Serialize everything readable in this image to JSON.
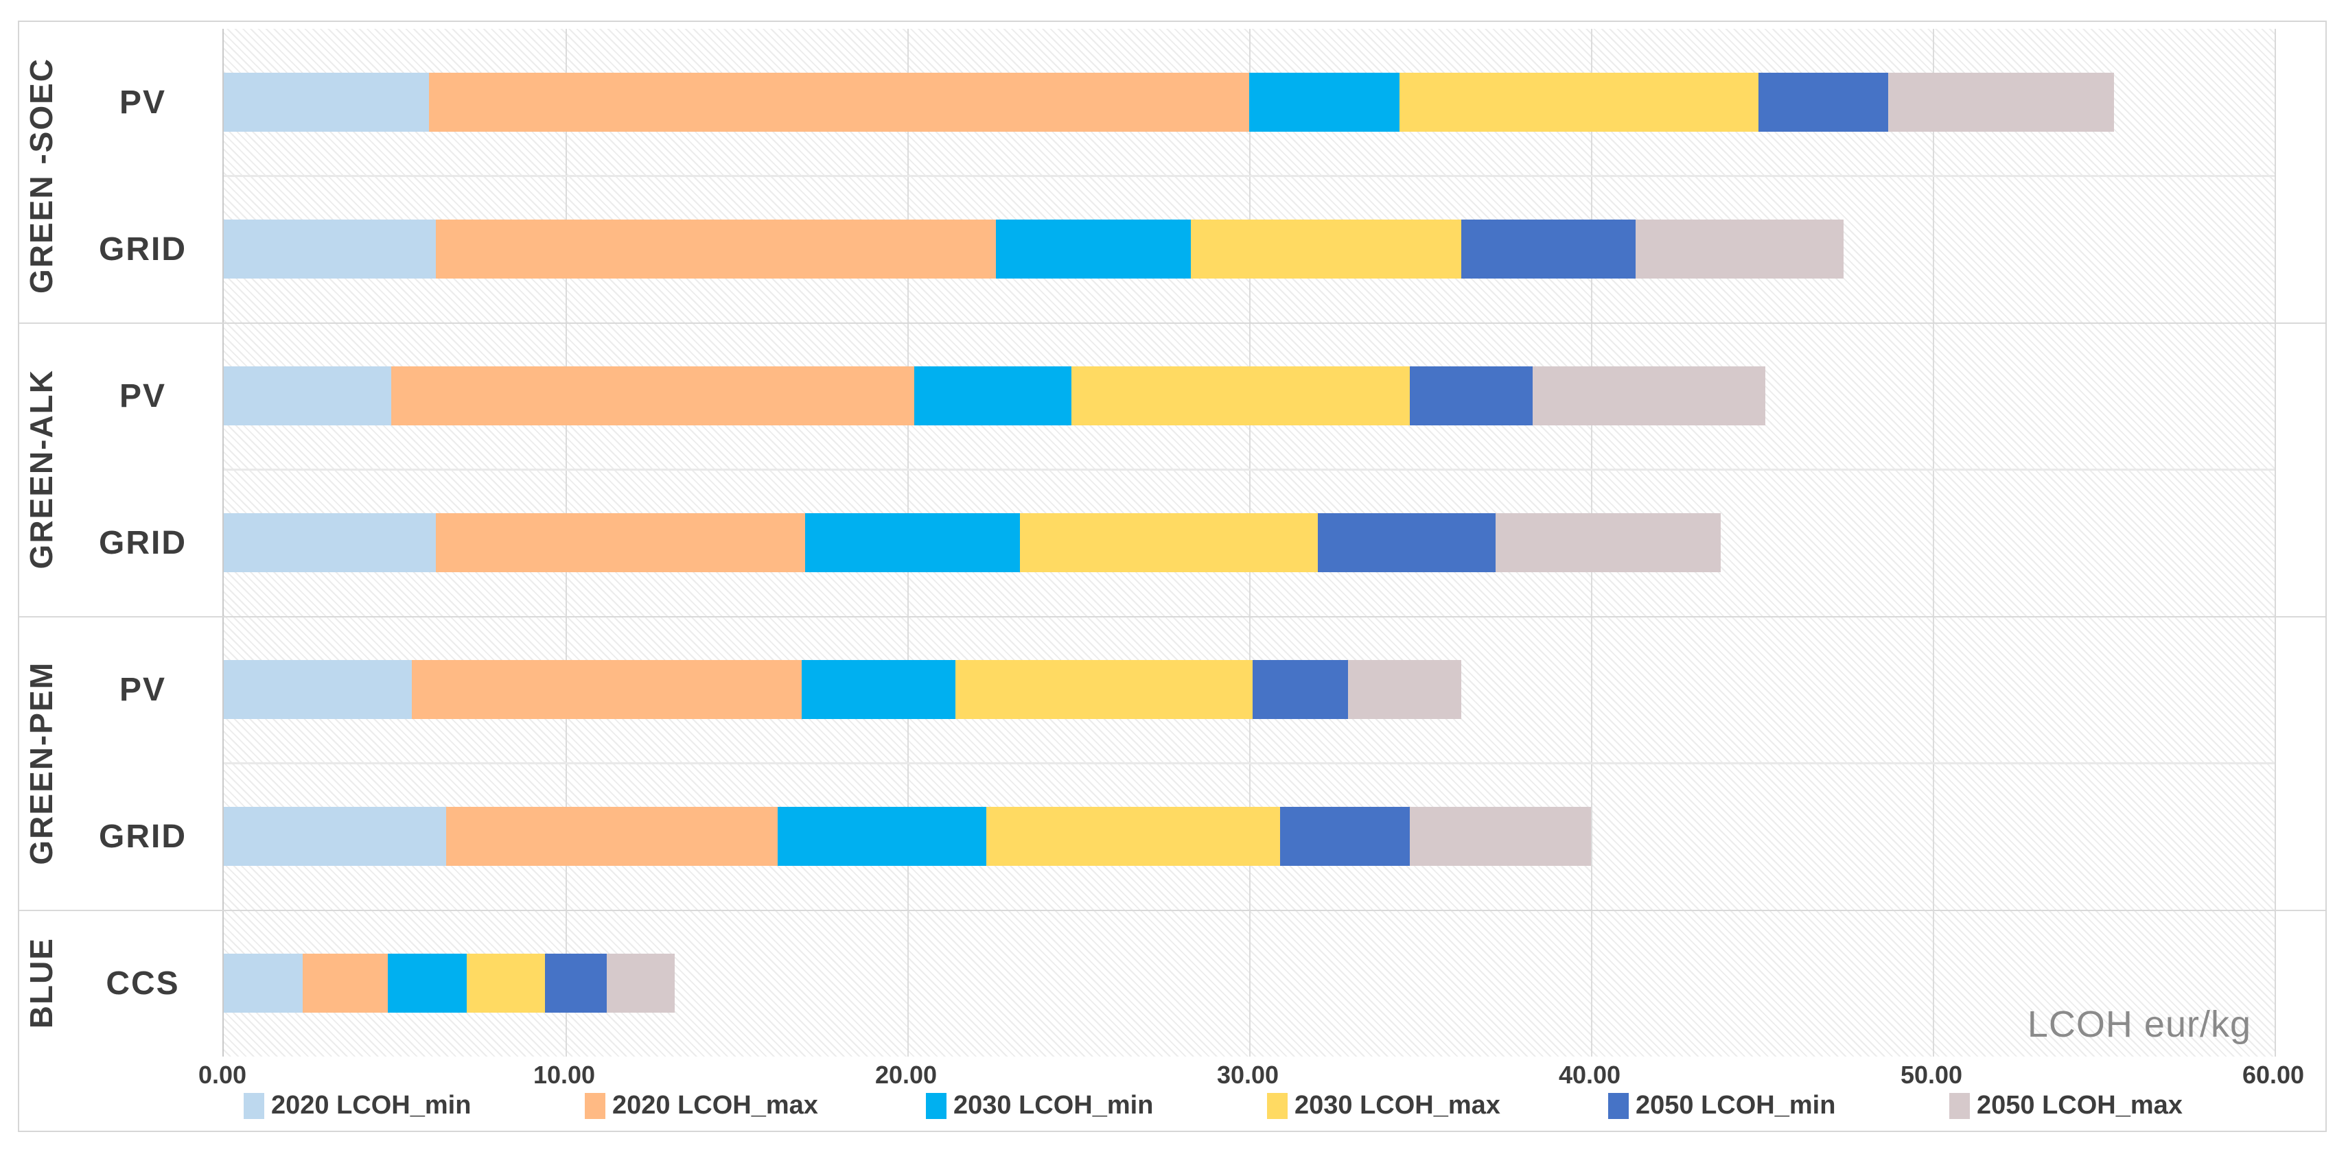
{
  "annotation": {
    "axis_note": "LCOH eur/kg"
  },
  "axis": {
    "min": 0,
    "max": 60,
    "tick_step": 10,
    "tick_labels": [
      "0.00",
      "10.00",
      "20.00",
      "30.00",
      "40.00",
      "50.00",
      "60.00"
    ]
  },
  "legend": [
    {
      "label": "2020 LCOH_min",
      "color": "#BDD8EE"
    },
    {
      "label": "2020 LCOH_max",
      "color": "#FFBA84"
    },
    {
      "label": "2030 LCOH_min",
      "color": "#00B0F0"
    },
    {
      "label": "2030 LCOH_max",
      "color": "#FFDA62"
    },
    {
      "label": "2050 LCOH_min",
      "color": "#4673C6"
    },
    {
      "label": "2050 LCOH_max",
      "color": "#D6C9CB"
    }
  ],
  "chart_data": {
    "type": "bar",
    "orientation": "horizontal",
    "stacked": true,
    "title": "",
    "xlabel": "LCOH eur/kg",
    "x_axis": {
      "min": 0,
      "max": 60,
      "tick_step": 10,
      "gridlines": true
    },
    "series_names": [
      "2020 LCOH_min",
      "2020 LCOH_max",
      "2030 LCOH_min",
      "2030 LCOH_max",
      "2050 LCOH_min",
      "2050 LCOH_max"
    ],
    "series_colors": [
      "#BDD8EE",
      "#FFBA84",
      "#00B0F0",
      "#FFDA62",
      "#4673C6",
      "#D6C9CB"
    ],
    "groups": [
      {
        "name": "GREEN -SOEC",
        "rows": [
          {
            "label": "PV",
            "segments": [
              6.0,
              24.0,
              4.4,
              10.5,
              3.8,
              6.6
            ],
            "cumulative": [
              6.0,
              30.0,
              34.4,
              44.9,
              48.7,
              55.3
            ]
          },
          {
            "label": "GRID",
            "segments": [
              6.2,
              16.4,
              5.7,
              7.9,
              5.1,
              6.1
            ],
            "cumulative": [
              6.2,
              22.6,
              28.3,
              36.2,
              41.3,
              47.4
            ]
          }
        ]
      },
      {
        "name": "GREEN-ALK",
        "rows": [
          {
            "label": "PV",
            "segments": [
              4.9,
              15.3,
              4.6,
              9.9,
              3.6,
              6.8
            ],
            "cumulative": [
              4.9,
              20.2,
              24.8,
              34.7,
              38.3,
              45.1
            ]
          },
          {
            "label": "GRID",
            "segments": [
              6.2,
              10.8,
              6.3,
              8.7,
              5.2,
              6.6
            ],
            "cumulative": [
              6.2,
              17.0,
              23.3,
              32.0,
              37.2,
              43.8
            ]
          }
        ]
      },
      {
        "name": "GREEN-PEM",
        "rows": [
          {
            "label": "PV",
            "segments": [
              5.5,
              11.4,
              4.5,
              8.7,
              2.8,
              3.3
            ],
            "cumulative": [
              5.5,
              16.9,
              21.4,
              30.1,
              32.9,
              36.2
            ]
          },
          {
            "label": "GRID",
            "segments": [
              6.5,
              9.7,
              6.1,
              8.6,
              3.8,
              5.3
            ],
            "cumulative": [
              6.5,
              16.2,
              22.3,
              30.9,
              34.7,
              40.0
            ]
          }
        ]
      },
      {
        "name": "BLUE",
        "rows": [
          {
            "label": "CCS",
            "segments": [
              2.3,
              2.5,
              2.3,
              2.3,
              1.8,
              2.0
            ],
            "cumulative": [
              2.3,
              4.8,
              7.1,
              9.4,
              11.2,
              13.2
            ]
          }
        ]
      }
    ]
  }
}
